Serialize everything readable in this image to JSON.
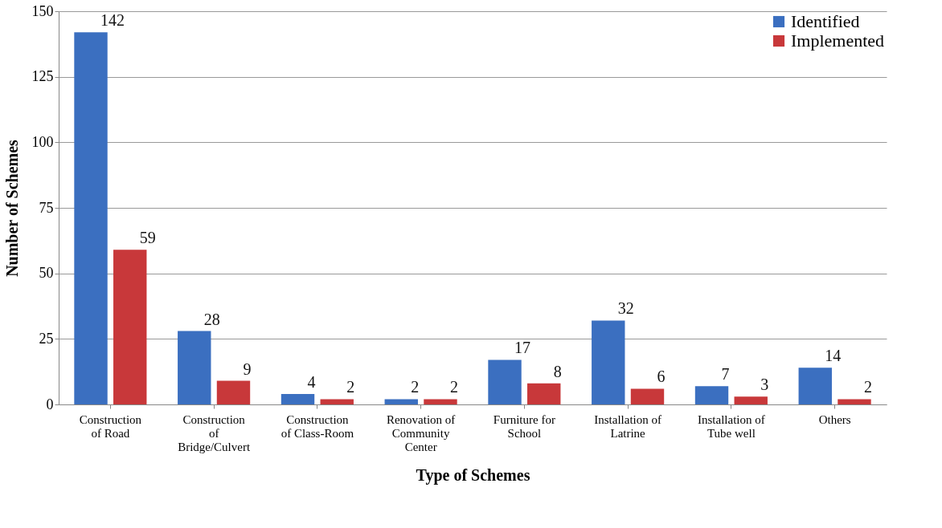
{
  "chart_data": {
    "type": "bar",
    "xlabel": "Type of Schemes",
    "ylabel": "Number of Schemes",
    "categories": [
      "Construction\nof Road",
      "Construction\nof\nBridge/Culvert",
      "Construction\nof Class-Room",
      "Renovation of\nCommunity\nCenter",
      "Furniture for\nSchool",
      "Installation of\nLatrine",
      "Installation of\nTube well",
      "Others"
    ],
    "series": [
      {
        "name": "Identified",
        "color": "#3b6fc0",
        "values": [
          142,
          28,
          4,
          2,
          17,
          32,
          7,
          14
        ]
      },
      {
        "name": "Implemented",
        "color": "#c8383a",
        "values": [
          59,
          9,
          2,
          2,
          8,
          6,
          3,
          2
        ]
      }
    ],
    "ylim": [
      0,
      150
    ],
    "yticks": [
      0,
      25,
      50,
      75,
      100,
      125,
      150
    ],
    "grid": "y",
    "legend": "top right",
    "data_labels": true
  }
}
